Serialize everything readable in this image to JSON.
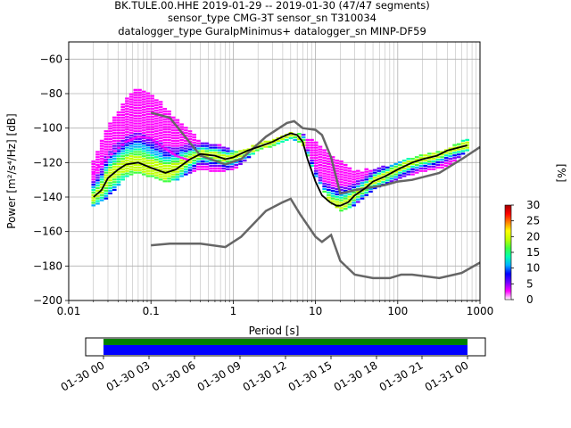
{
  "title_lines": [
    "BK.TULE.00.HHE   2019-01-29 -- 2019-01-30  (47/47 segments)",
    "sensor_type CMG-3T sensor_sn T310034",
    "datalogger_type GuralpMinimus+ datalogger_sn MINP-DF59"
  ],
  "chart_data": {
    "type": "heatmap",
    "xlabel": "Period [s]",
    "ylabel": "Power [m²/s⁴/Hz] [dB]",
    "x_scale": "log",
    "xlim": [
      0.01,
      1000
    ],
    "ylim": [
      -200,
      -50
    ],
    "x_ticks": [
      0.01,
      0.1,
      1,
      10,
      100,
      1000
    ],
    "x_tick_labels": [
      "0.01",
      "0.1",
      "1",
      "10",
      "100",
      "1000"
    ],
    "y_ticks": [
      -200,
      -180,
      -160,
      -140,
      -120,
      -100,
      -80,
      -60
    ],
    "y_tick_labels": [
      "−200",
      "−180",
      "−160",
      "−140",
      "−120",
      "−100",
      "−80",
      "−60"
    ],
    "grid": true,
    "colorbar": {
      "label": "[%]",
      "min": 0,
      "max": 30,
      "ticks": [
        0,
        5,
        10,
        15,
        20,
        25,
        30
      ],
      "colormap": [
        "#ffffff",
        "#ff00ff",
        "#7000ff",
        "#0000ff",
        "#00b0ff",
        "#00ffb0",
        "#40ff40",
        "#c0ff00",
        "#ffff00",
        "#ff8000",
        "#ff0000",
        "#a00000"
      ]
    },
    "nhnm": {
      "period": [
        0.1,
        0.17,
        0.4,
        0.8,
        1.25,
        2.5,
        4.5,
        5.5,
        7,
        10,
        12,
        15.5,
        20,
        30,
        40,
        70,
        100,
        150,
        320,
        600,
        1000
      ],
      "db": [
        -91,
        -94,
        -116,
        -121,
        -118,
        -105,
        -97,
        -96,
        -100,
        -101,
        -104,
        -117,
        -138,
        -136,
        -135,
        -133,
        -131,
        -130,
        -126,
        -118,
        -111
      ]
    },
    "nlnm": {
      "period": [
        0.1,
        0.17,
        0.4,
        0.8,
        1.25,
        2.5,
        4.0,
        5.0,
        6.5,
        10,
        12,
        15.5,
        20,
        30,
        50,
        80,
        110,
        150,
        320,
        600,
        1000
      ],
      "db": [
        -168,
        -167,
        -167,
        -169,
        -163,
        -148,
        -143,
        -141,
        -150,
        -163,
        -166,
        -162,
        -177,
        -185,
        -187,
        -187,
        -185,
        -185,
        -187,
        -184,
        -178
      ]
    },
    "mode_curve": {
      "period": [
        0.02,
        0.025,
        0.03,
        0.04,
        0.05,
        0.07,
        0.1,
        0.15,
        0.2,
        0.3,
        0.4,
        0.6,
        0.8,
        1.0,
        1.5,
        2,
        3,
        4,
        5,
        6,
        7,
        8,
        10,
        12,
        15,
        18,
        20,
        25,
        30,
        40,
        50,
        70,
        100,
        150,
        200,
        300,
        400,
        700
      ],
      "db": [
        -140,
        -136,
        -129,
        -124,
        -121,
        -120,
        -123,
        -126,
        -124,
        -118,
        -115,
        -116,
        -118,
        -117,
        -113,
        -111,
        -108,
        -105,
        -103,
        -104,
        -108,
        -118,
        -131,
        -139,
        -143,
        -145,
        -145,
        -143,
        -139,
        -135,
        -131,
        -128,
        -124,
        -120,
        -118,
        -116,
        -113,
        -110
      ]
    },
    "spread_upper": {
      "period": [
        0.02,
        0.03,
        0.05,
        0.07,
        0.1,
        0.15,
        0.2,
        0.3,
        0.4,
        0.6,
        1.0,
        1.5,
        2,
        3,
        5,
        7,
        10,
        15,
        20,
        30,
        50,
        100,
        200,
        400,
        700
      ],
      "db": [
        -119,
        -99,
        -83,
        -77,
        -80,
        -88,
        -94,
        -102,
        -108,
        -109,
        -113,
        -112,
        -109,
        -106,
        -102,
        -104,
        -108,
        -115,
        -119,
        -125,
        -124,
        -120,
        -115,
        -113,
        -106
      ]
    },
    "spread_lower": {
      "period": [
        0.02,
        0.03,
        0.05,
        0.07,
        0.1,
        0.15,
        0.2,
        0.3,
        0.4,
        0.6,
        1.0,
        1.5,
        2,
        3,
        5,
        7,
        10,
        15,
        20,
        30,
        50,
        100,
        200,
        400,
        700
      ],
      "db": [
        -145,
        -140,
        -128,
        -126,
        -128,
        -131,
        -130,
        -126,
        -124,
        -125,
        -124,
        -118,
        -113,
        -110,
        -106,
        -109,
        -127,
        -143,
        -148,
        -145,
        -136,
        -129,
        -125,
        -122,
        -113
      ]
    },
    "modes_secondary": {
      "period": [
        0.02,
        0.03,
        0.05,
        0.07,
        0.1,
        0.15,
        0.2,
        0.3
      ],
      "db": [
        -126,
        -117,
        -108,
        -105,
        -106,
        -112,
        -116,
        -119
      ]
    }
  },
  "coverage": {
    "tick_labels": [
      "01-30 00",
      "01-30 03",
      "01-30 06",
      "01-30 09",
      "01-30 12",
      "01-30 15",
      "01-30 18",
      "01-30 21",
      "01-31 00"
    ],
    "start_hour": 0,
    "end_hour": 24,
    "colors": {
      "data": "#0000ff",
      "gaps_top": "#008000"
    }
  }
}
